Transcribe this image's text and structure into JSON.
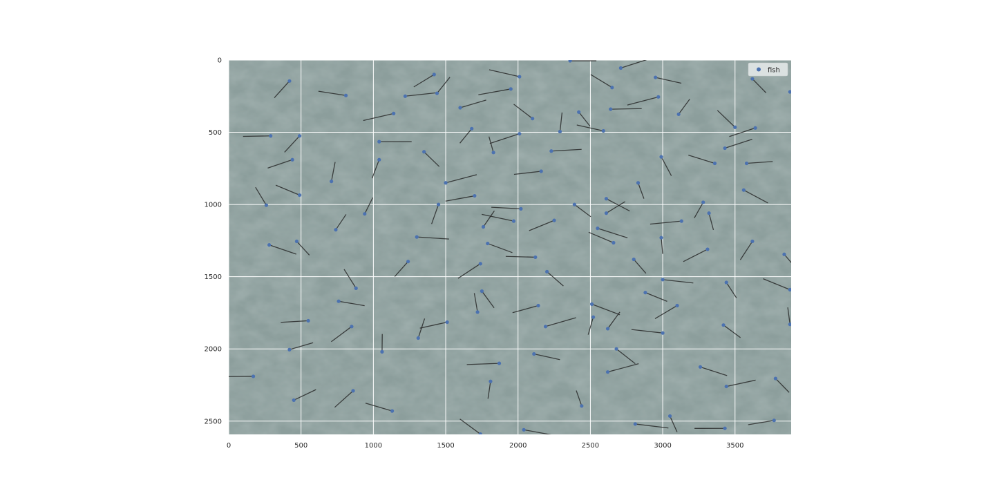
{
  "chart_data": {
    "type": "scatter",
    "title": "",
    "xlabel": "",
    "ylabel": "",
    "xlim": [
      0,
      3888
    ],
    "ylim": [
      2592,
      0
    ],
    "y_inverted": true,
    "grid": true,
    "background": "underwater image of a shoal of small fish",
    "legend": {
      "position": "top-right",
      "entries": [
        "fish"
      ]
    },
    "x_ticks": [
      "0",
      "500",
      "1000",
      "1500",
      "2000",
      "2500",
      "3000",
      "3500"
    ],
    "y_ticks": [
      "0",
      "500",
      "1000",
      "1500",
      "2000",
      "2500"
    ],
    "colors": {
      "point": "#4c72b0",
      "line": "#222222",
      "grid": "#ffffff",
      "water": "#8c9e9c"
    },
    "series": [
      {
        "name": "fish",
        "points": [
          [
            2360,
            5
          ],
          [
            2710,
            55
          ],
          [
            2950,
            120
          ],
          [
            2010,
            115
          ],
          [
            1420,
            100
          ],
          [
            1950,
            200
          ],
          [
            2650,
            190
          ],
          [
            3620,
            130
          ],
          [
            420,
            145
          ],
          [
            810,
            245
          ],
          [
            1220,
            250
          ],
          [
            1440,
            230
          ],
          [
            2420,
            360
          ],
          [
            2640,
            340
          ],
          [
            3110,
            375
          ],
          [
            1140,
            370
          ],
          [
            1600,
            330
          ],
          [
            2970,
            255
          ],
          [
            2100,
            405
          ],
          [
            1680,
            475
          ],
          [
            2290,
            495
          ],
          [
            2590,
            490
          ],
          [
            3500,
            465
          ],
          [
            3640,
            470
          ],
          [
            3880,
            220
          ],
          [
            490,
            525
          ],
          [
            290,
            525
          ],
          [
            1040,
            565
          ],
          [
            1350,
            635
          ],
          [
            2010,
            510
          ],
          [
            2230,
            630
          ],
          [
            1830,
            640
          ],
          [
            1040,
            690
          ],
          [
            440,
            690
          ],
          [
            2990,
            670
          ],
          [
            3360,
            715
          ],
          [
            3580,
            715
          ],
          [
            3430,
            610
          ],
          [
            2160,
            770
          ],
          [
            710,
            840
          ],
          [
            490,
            935
          ],
          [
            1500,
            850
          ],
          [
            1700,
            940
          ],
          [
            2830,
            850
          ],
          [
            260,
            1005
          ],
          [
            940,
            1065
          ],
          [
            1450,
            1000
          ],
          [
            2020,
            1030
          ],
          [
            2390,
            1000
          ],
          [
            2610,
            960
          ],
          [
            3280,
            985
          ],
          [
            3560,
            900
          ],
          [
            1760,
            1155
          ],
          [
            1970,
            1115
          ],
          [
            2250,
            1110
          ],
          [
            2610,
            1060
          ],
          [
            3130,
            1115
          ],
          [
            3320,
            1060
          ],
          [
            3620,
            1255
          ],
          [
            3840,
            1345
          ],
          [
            470,
            1255
          ],
          [
            280,
            1280
          ],
          [
            740,
            1175
          ],
          [
            1300,
            1225
          ],
          [
            1790,
            1270
          ],
          [
            2550,
            1165
          ],
          [
            2660,
            1265
          ],
          [
            2990,
            1230
          ],
          [
            3310,
            1310
          ],
          [
            1240,
            1395
          ],
          [
            1740,
            1410
          ],
          [
            2120,
            1365
          ],
          [
            2800,
            1380
          ],
          [
            3000,
            1520
          ],
          [
            3440,
            1540
          ],
          [
            3880,
            1590
          ],
          [
            2200,
            1465
          ],
          [
            880,
            1580
          ],
          [
            1750,
            1600
          ],
          [
            760,
            1670
          ],
          [
            1720,
            1745
          ],
          [
            2140,
            1700
          ],
          [
            2510,
            1690
          ],
          [
            2520,
            1780
          ],
          [
            2880,
            1610
          ],
          [
            3100,
            1700
          ],
          [
            550,
            1805
          ],
          [
            850,
            1845
          ],
          [
            1510,
            1815
          ],
          [
            2190,
            1845
          ],
          [
            2620,
            1860
          ],
          [
            3420,
            1835
          ],
          [
            3000,
            1890
          ],
          [
            3880,
            1830
          ],
          [
            1310,
            1925
          ],
          [
            1060,
            2020
          ],
          [
            420,
            2005
          ],
          [
            2680,
            2000
          ],
          [
            2110,
            2035
          ],
          [
            1870,
            2100
          ],
          [
            1810,
            2225
          ],
          [
            2620,
            2160
          ],
          [
            3260,
            2125
          ],
          [
            3780,
            2205
          ],
          [
            170,
            2190
          ],
          [
            450,
            2355
          ],
          [
            860,
            2290
          ],
          [
            1130,
            2430
          ],
          [
            2440,
            2395
          ],
          [
            3440,
            2260
          ],
          [
            3050,
            2465
          ],
          [
            1740,
            2590
          ],
          [
            2040,
            2560
          ],
          [
            2810,
            2520
          ],
          [
            3430,
            2550
          ],
          [
            3770,
            2495
          ]
        ]
      }
    ]
  }
}
